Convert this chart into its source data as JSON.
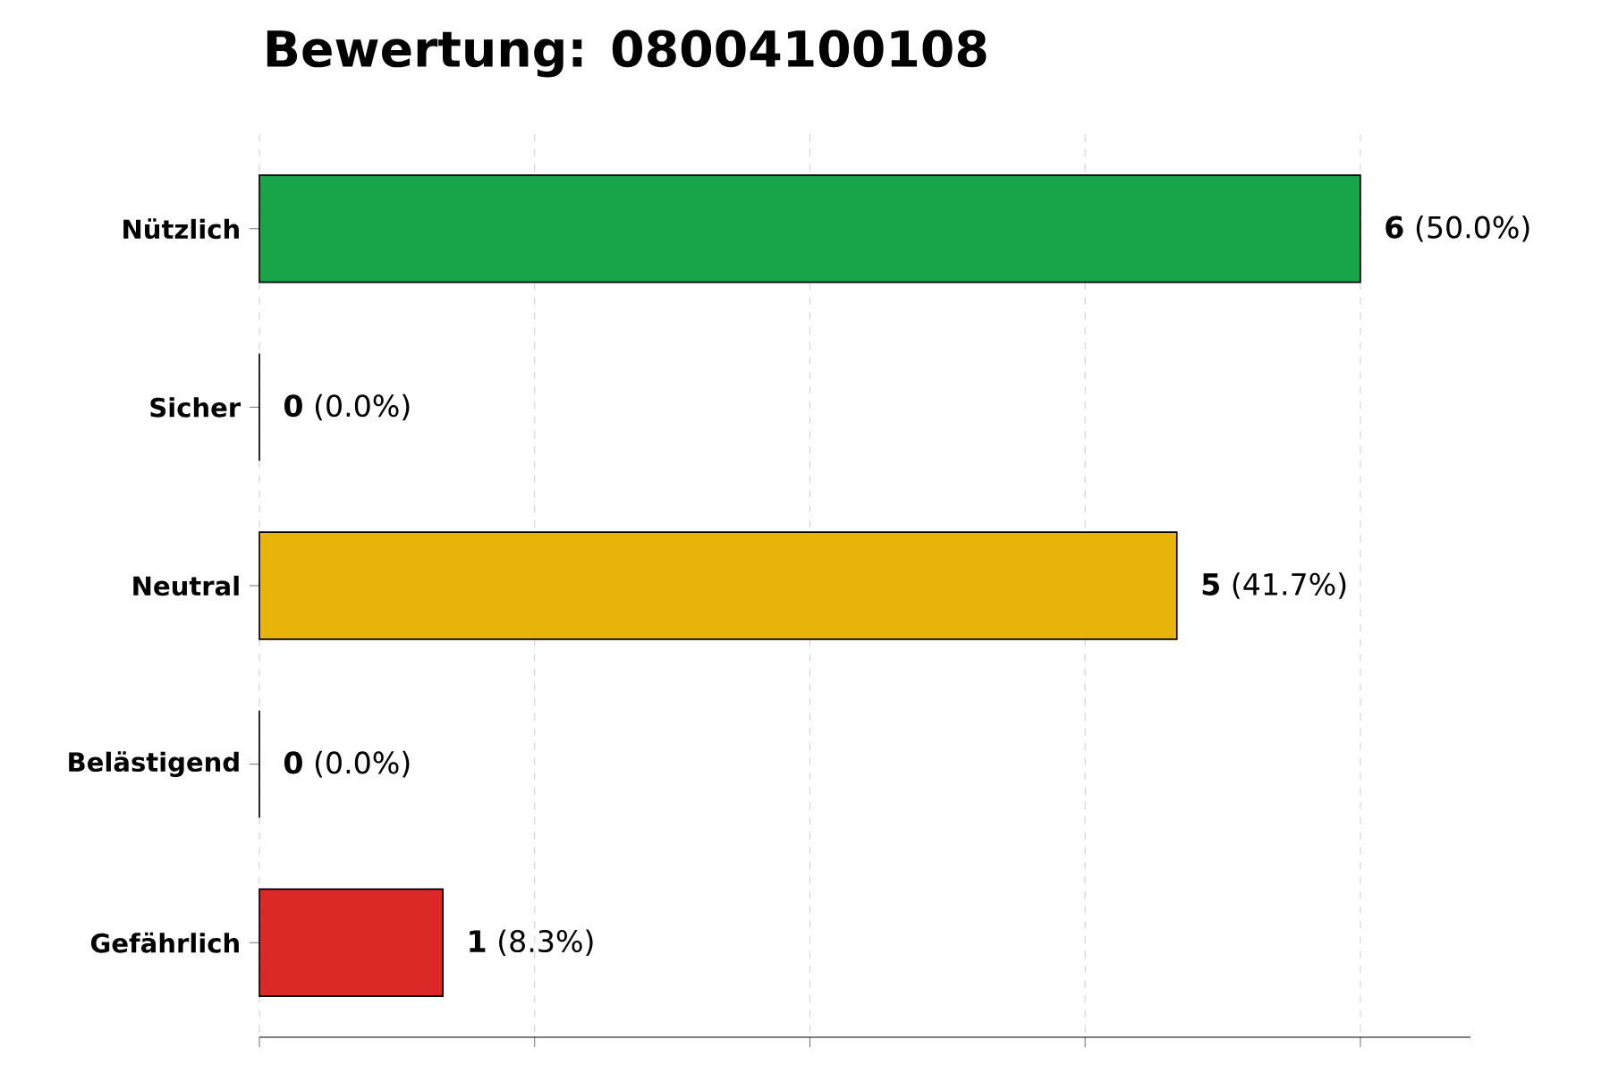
{
  "chart_data": {
    "type": "bar",
    "orientation": "horizontal",
    "title": "Bewertung: 08004100108",
    "categories": [
      "Nützlich",
      "Sicher",
      "Neutral",
      "Belästigend",
      "Gefährlich"
    ],
    "values": [
      6,
      0,
      5,
      0,
      1
    ],
    "colors": [
      "#18a54a",
      "#7f7f7f",
      "#e8b40a",
      "#7f7f7f",
      "#dd2828"
    ],
    "value_labels": [
      "**6** (50.0%)",
      "**0** (0.0%)",
      "**5** (41.7%)",
      "**0** (0.0%)",
      "**1** (8.3%)"
    ],
    "xlim": [
      0,
      6.6
    ],
    "xticks": [
      {
        "value": 0,
        "label": null
      },
      {
        "value": 1.5,
        "label": null
      },
      {
        "value": 3,
        "label": null
      },
      {
        "value": 4.5,
        "label": null
      },
      {
        "value": 6,
        "label": null
      }
    ],
    "grid": "x",
    "tick_labels": "y"
  }
}
